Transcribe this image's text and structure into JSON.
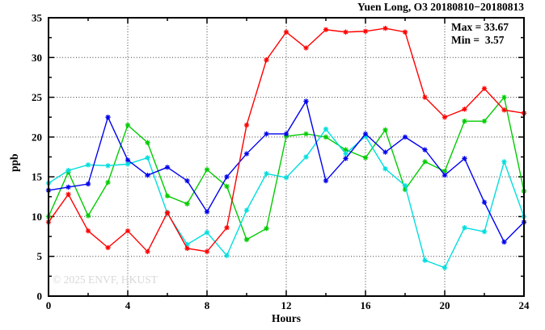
{
  "title": "Yuen Long, O3 20180810−20180813",
  "legend": {
    "max": "Max = 33.67",
    "min": "Min =  3.57"
  },
  "axes": {
    "ylabel": "ppb",
    "xlabel": "Hours"
  },
  "watermark": "© 2025 ENVF, HKUST",
  "chart_data": {
    "type": "line",
    "title": "Yuen Long, O3 20180810−20180813",
    "xlabel": "Hours",
    "ylabel": "ppb",
    "xlim": [
      0,
      24
    ],
    "ylim": [
      0,
      35
    ],
    "xticks_major": [
      0,
      4,
      8,
      12,
      16,
      20,
      24
    ],
    "xticks_minor": [
      2,
      6,
      10,
      14,
      18,
      22
    ],
    "yticks_major": [
      0,
      5,
      10,
      15,
      20,
      25,
      30,
      35
    ],
    "yticks_minor": [
      2.5,
      7.5,
      12.5,
      17.5,
      22.5,
      27.5,
      32.5
    ],
    "grid_x": [
      4,
      8,
      12,
      16,
      20
    ],
    "grid_y": [
      5,
      10,
      15,
      20,
      25,
      30
    ],
    "grid_on": true,
    "legend_position": "top-right-inside",
    "stat_max": 33.67,
    "stat_min": 3.57,
    "marker": "asterisk",
    "x": [
      0,
      1,
      2,
      3,
      4,
      5,
      6,
      7,
      8,
      9,
      10,
      11,
      12,
      13,
      14,
      15,
      16,
      17,
      18,
      19,
      20,
      21,
      22,
      23,
      24
    ],
    "series": [
      {
        "name": "green-day",
        "color": "#00cc00",
        "values": [
          10.0,
          15.6,
          10.1,
          14.3,
          21.5,
          19.3,
          12.6,
          11.6,
          15.9,
          13.8,
          7.1,
          8.5,
          20.1,
          20.4,
          20.0,
          18.4,
          17.4,
          20.9,
          13.4,
          16.9,
          15.7,
          22.0,
          22.0,
          25.0,
          13.2
        ]
      },
      {
        "name": "cyan-day",
        "color": "#00dede",
        "values": [
          14.2,
          15.8,
          16.5,
          16.4,
          16.6,
          17.4,
          10.4,
          6.5,
          8.0,
          5.1,
          10.8,
          15.4,
          14.9,
          17.5,
          21.0,
          17.9,
          20.1,
          16.0,
          13.9,
          4.5,
          3.57,
          8.6,
          8.1,
          16.9,
          10.0
        ]
      },
      {
        "name": "blue-day",
        "color": "#0000ee",
        "values": [
          13.3,
          13.7,
          14.1,
          22.5,
          17.1,
          15.2,
          16.2,
          14.5,
          10.6,
          15.0,
          17.9,
          20.4,
          20.4,
          24.5,
          14.5,
          17.3,
          20.4,
          18.1,
          20.0,
          18.4,
          15.2,
          17.3,
          11.8,
          6.8,
          9.3
        ]
      },
      {
        "name": "red-day",
        "color": "#ff0000",
        "values": [
          9.3,
          12.8,
          8.2,
          6.1,
          8.2,
          5.6,
          10.5,
          6.0,
          5.6,
          8.6,
          21.5,
          29.7,
          33.2,
          31.2,
          33.5,
          33.2,
          33.3,
          33.67,
          33.2,
          25.0,
          22.5,
          23.5,
          26.1,
          23.4,
          23.0
        ]
      }
    ]
  }
}
